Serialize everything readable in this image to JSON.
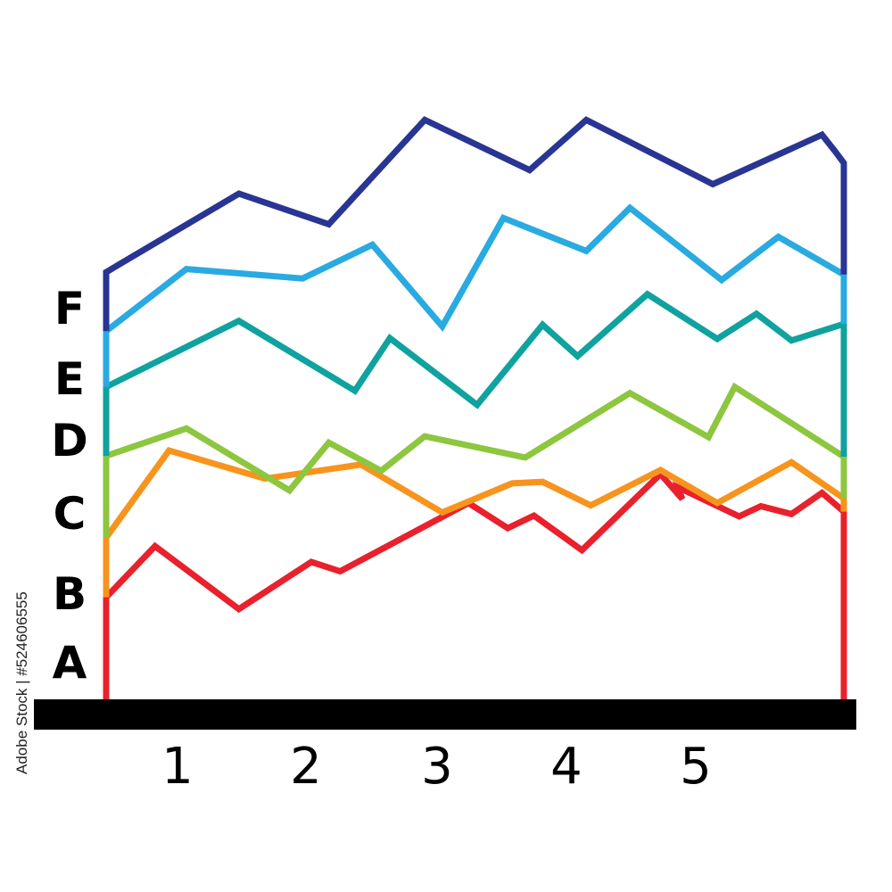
{
  "chart_data": {
    "type": "line",
    "title": "",
    "xlabel": "",
    "ylabel": "",
    "x_ticks": [
      "1",
      "2",
      "3",
      "4",
      "5"
    ],
    "y_categories": [
      "A",
      "B",
      "C",
      "D",
      "E",
      "F"
    ],
    "series": [
      {
        "color": "#e8212c",
        "points": [
          [
            0.0,
            1.3
          ],
          [
            0.56,
            1.95
          ],
          [
            1.52,
            1.15
          ],
          [
            2.35,
            1.75
          ],
          [
            2.68,
            1.63
          ],
          [
            4.15,
            2.5
          ],
          [
            4.6,
            2.18
          ],
          [
            4.9,
            2.34
          ],
          [
            5.45,
            1.9
          ],
          [
            6.35,
            2.87
          ],
          [
            6.6,
            2.55
          ],
          [
            6.55,
            2.7
          ],
          [
            7.25,
            2.33
          ],
          [
            7.5,
            2.46
          ],
          [
            7.85,
            2.36
          ],
          [
            8.2,
            2.63
          ],
          [
            8.45,
            2.39
          ]
        ]
      },
      {
        "color": "#f7941d",
        "points": [
          [
            0.0,
            2.06
          ],
          [
            0.72,
            3.17
          ],
          [
            1.82,
            2.81
          ],
          [
            2.92,
            2.99
          ],
          [
            3.85,
            2.38
          ],
          [
            4.65,
            2.75
          ],
          [
            5.0,
            2.77
          ],
          [
            5.55,
            2.47
          ],
          [
            6.35,
            2.92
          ],
          [
            7.0,
            2.5
          ],
          [
            7.85,
            3.02
          ],
          [
            8.45,
            2.56
          ]
        ]
      },
      {
        "color": "#8dc63f",
        "points": [
          [
            0.0,
            3.1
          ],
          [
            0.92,
            3.45
          ],
          [
            2.1,
            2.66
          ],
          [
            2.55,
            3.27
          ],
          [
            3.15,
            2.91
          ],
          [
            3.65,
            3.35
          ],
          [
            4.8,
            3.08
          ],
          [
            6.0,
            3.9
          ],
          [
            6.9,
            3.34
          ],
          [
            7.2,
            3.98
          ],
          [
            8.45,
            3.09
          ]
        ]
      },
      {
        "color": "#0fa29f",
        "points": [
          [
            0.0,
            3.98
          ],
          [
            1.52,
            4.82
          ],
          [
            2.85,
            3.93
          ],
          [
            3.25,
            4.6
          ],
          [
            4.25,
            3.75
          ],
          [
            5.0,
            4.77
          ],
          [
            5.4,
            4.37
          ],
          [
            6.2,
            5.16
          ],
          [
            7.0,
            4.59
          ],
          [
            7.45,
            4.91
          ],
          [
            7.85,
            4.57
          ],
          [
            8.45,
            4.78
          ]
        ]
      },
      {
        "color": "#29aae1",
        "points": [
          [
            0.0,
            4.69
          ],
          [
            0.92,
            5.48
          ],
          [
            2.25,
            5.36
          ],
          [
            3.05,
            5.79
          ],
          [
            3.85,
            4.75
          ],
          [
            4.55,
            6.13
          ],
          [
            5.5,
            5.71
          ],
          [
            6.0,
            6.26
          ],
          [
            7.05,
            5.34
          ],
          [
            7.7,
            5.89
          ],
          [
            8.45,
            5.41
          ]
        ]
      },
      {
        "color": "#283593",
        "points": [
          [
            0.0,
            5.44
          ],
          [
            1.52,
            6.44
          ],
          [
            2.55,
            6.05
          ],
          [
            3.65,
            7.38
          ],
          [
            4.85,
            6.74
          ],
          [
            5.5,
            7.38
          ],
          [
            6.95,
            6.56
          ],
          [
            8.2,
            7.19
          ],
          [
            8.35,
            6.98
          ],
          [
            8.45,
            6.83
          ]
        ]
      }
    ],
    "x_range": [
      0,
      8.45
    ],
    "y_range": [
      0,
      7.6
    ],
    "grid": false,
    "legend": "none"
  },
  "watermark": {
    "side_text": "Adobe Stock | #524606555"
  }
}
